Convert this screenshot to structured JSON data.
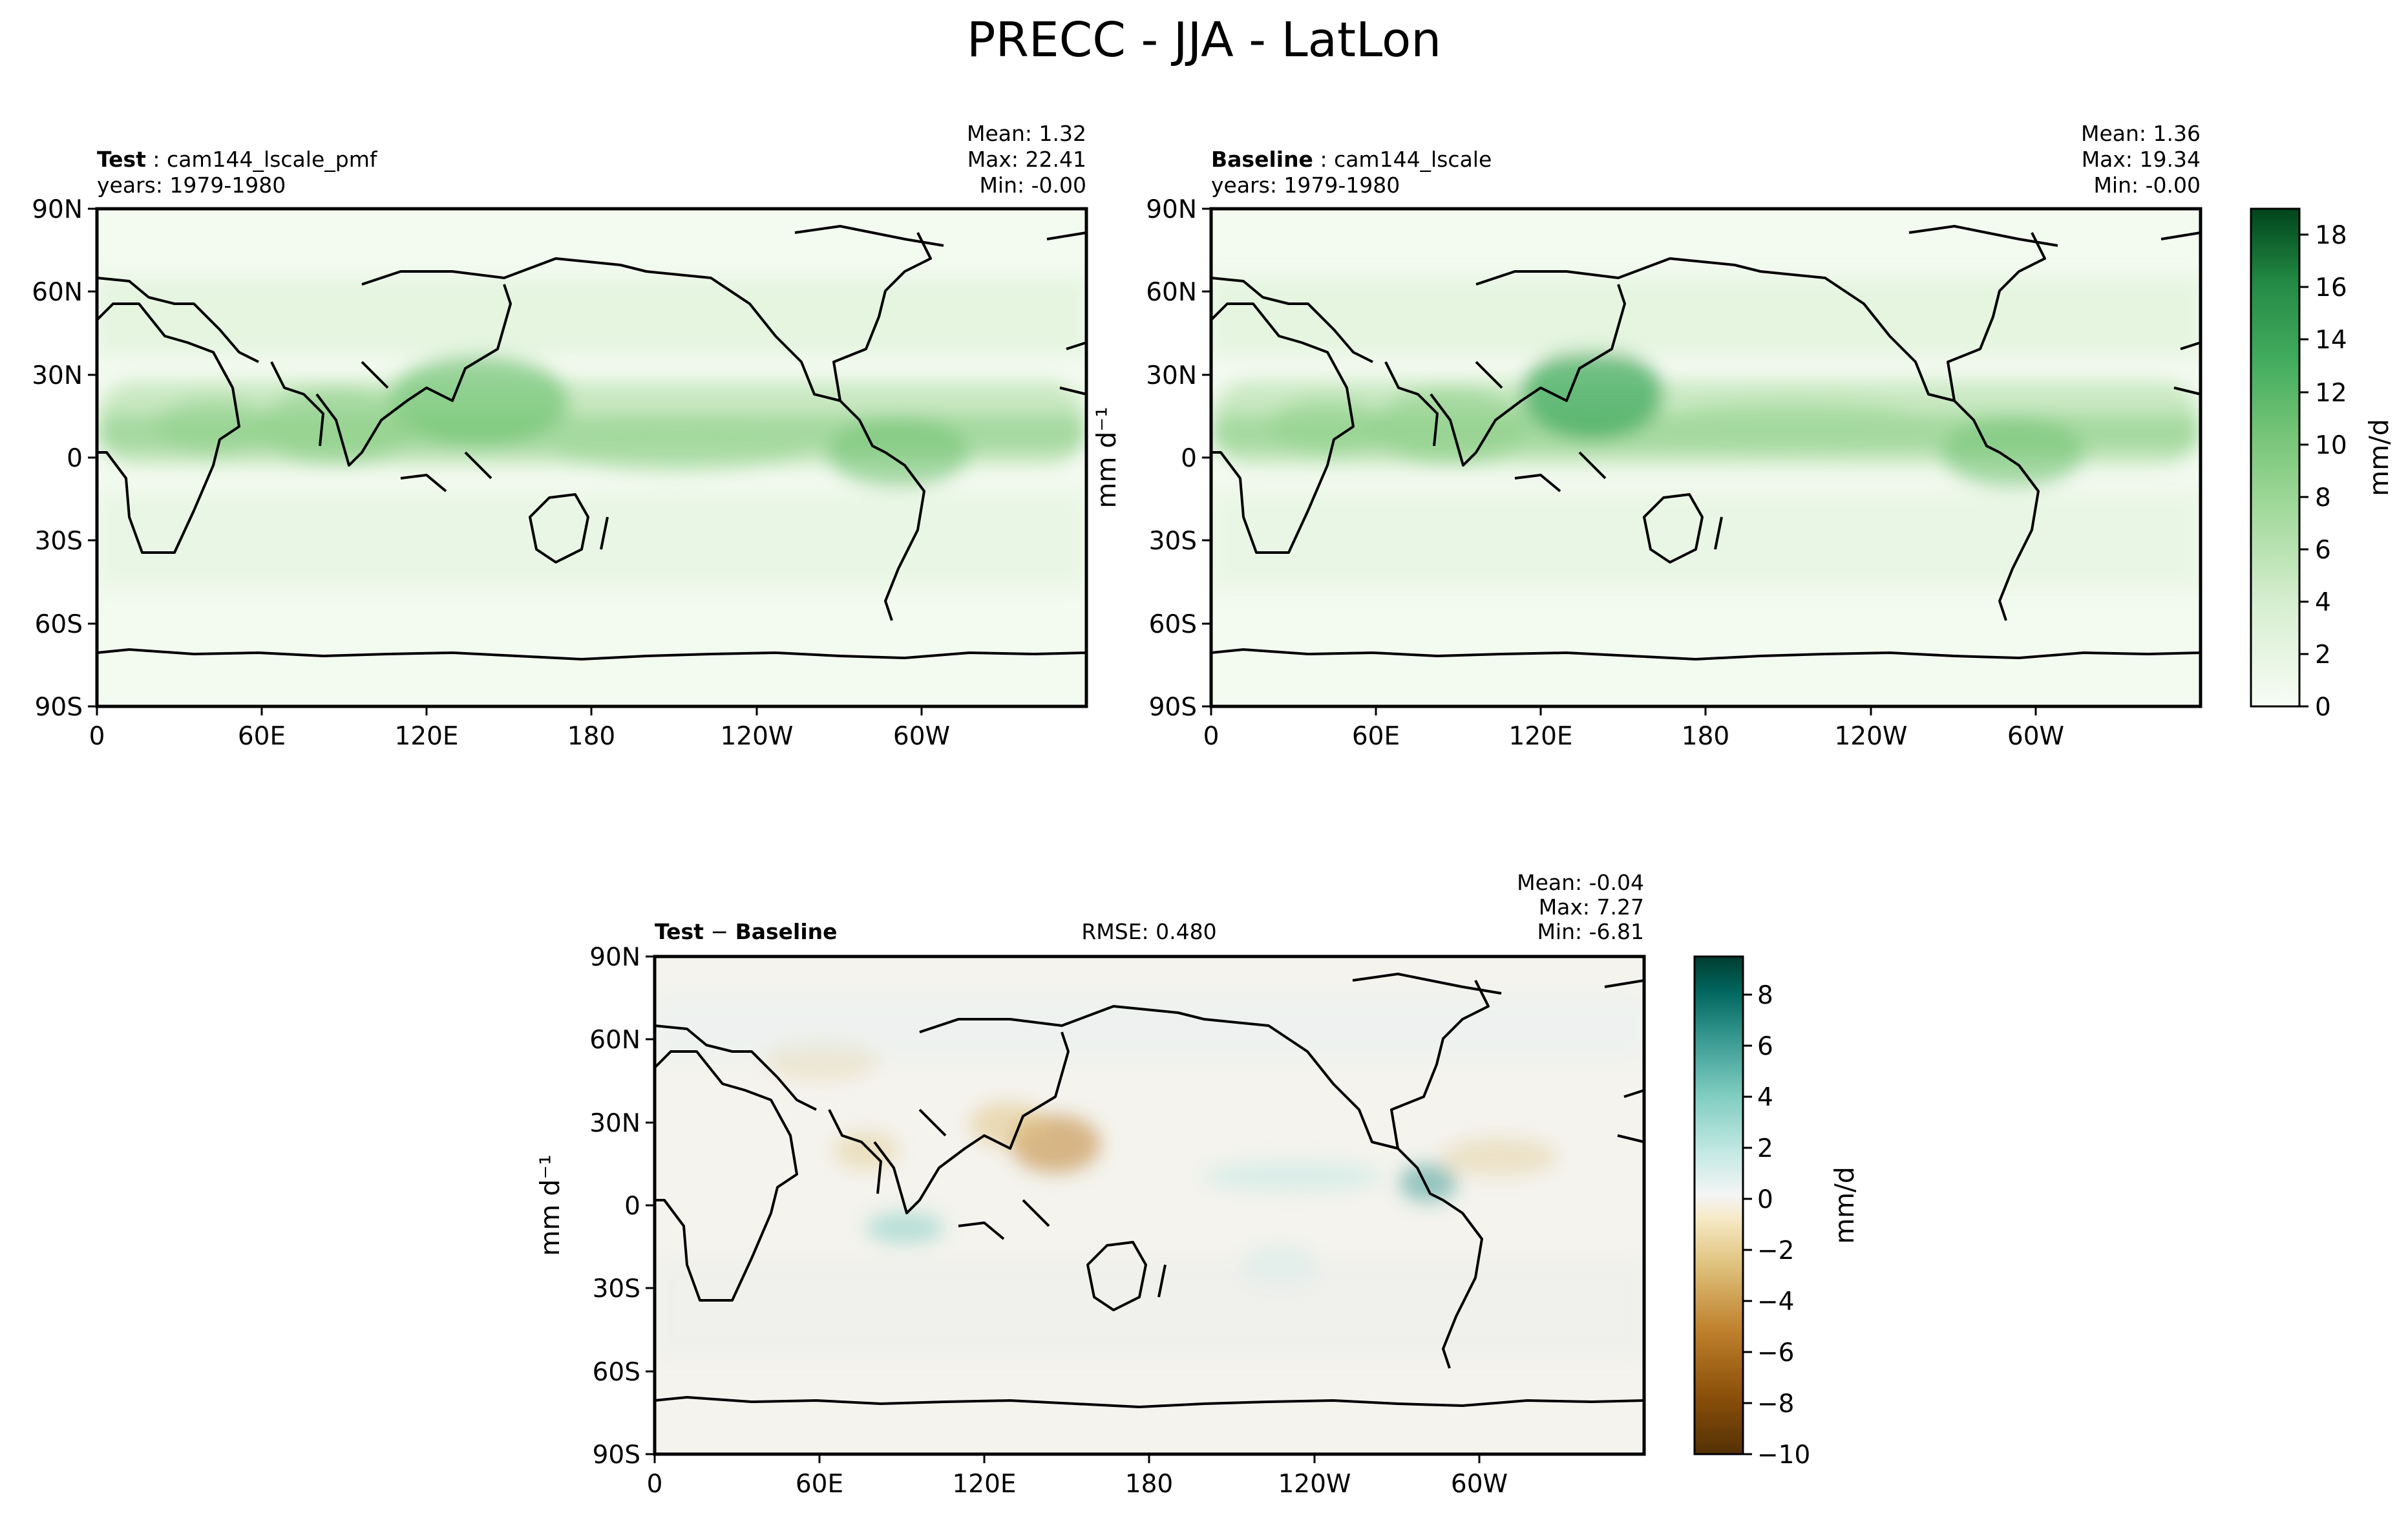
{
  "figure_title": "PRECC - JJA - LatLon",
  "chart_data": [
    {
      "type": "heatmap",
      "name": "test",
      "title_bold": "Test",
      "title_rest": "cam144_lscale_pmf",
      "years": "years: 1979-1980",
      "stats": {
        "mean": "Mean:  1.32",
        "max": "Max: 22.41",
        "min": "Min: -0.00"
      },
      "xticks": [
        "0",
        "60E",
        "120E",
        "180",
        "120W",
        "60W"
      ],
      "yticks": [
        "90N",
        "60N",
        "30N",
        "0",
        "30S",
        "60S",
        "90S"
      ],
      "xlim": [
        0,
        360
      ],
      "ylim": [
        -90,
        90
      ],
      "ylabel": "",
      "colormap": [
        "#f7fcf5",
        "#e5f5e0",
        "#c7e9c0",
        "#a1d99b",
        "#74c476",
        "#41ab5d",
        "#238b45",
        "#006d2c",
        "#00441b"
      ]
    },
    {
      "type": "heatmap",
      "name": "baseline",
      "title_bold": "Baseline",
      "title_rest": "cam144_lscale",
      "years": "years: 1979-1980",
      "stats": {
        "mean": "Mean:  1.36",
        "max": "Max: 19.34",
        "min": "Min: -0.00"
      },
      "xticks": [
        "0",
        "60E",
        "120E",
        "180",
        "120W",
        "60W"
      ],
      "yticks": [
        "90N",
        "60N",
        "30N",
        "0",
        "30S",
        "60S",
        "90S"
      ],
      "xlim": [
        0,
        360
      ],
      "ylim": [
        -90,
        90
      ],
      "ylabel": "mm d⁻¹",
      "colorbar": {
        "label": "mm/d",
        "ticks": [
          "0",
          "2",
          "4",
          "6",
          "8",
          "10",
          "12",
          "14",
          "16",
          "18"
        ],
        "range": [
          0,
          19
        ]
      }
    },
    {
      "type": "heatmap",
      "name": "difference",
      "title_bold_a": "Test",
      "title_sep": " − ",
      "title_bold_b": "Baseline",
      "rmse": "RMSE: 0.480",
      "stats": {
        "mean": "Mean: -0.04",
        "max": "Max:  7.27",
        "min": "Min: -6.81"
      },
      "xticks": [
        "0",
        "60E",
        "120E",
        "180",
        "120W",
        "60W"
      ],
      "yticks": [
        "90N",
        "60N",
        "30N",
        "0",
        "30S",
        "60S",
        "90S"
      ],
      "xlim": [
        0,
        360
      ],
      "ylim": [
        -90,
        90
      ],
      "ylabel": "mm d⁻¹",
      "colorbar": {
        "label": "mm/d",
        "ticks": [
          "−10",
          "−8",
          "−6",
          "−4",
          "−2",
          "0",
          "2",
          "4",
          "6",
          "8"
        ],
        "range": [
          -10,
          9.5
        ]
      },
      "colormap": [
        "#543005",
        "#8c510a",
        "#bf812d",
        "#dfc27d",
        "#f6e8c3",
        "#f5f5f5",
        "#c7eae5",
        "#80cdc1",
        "#35978f",
        "#01665e",
        "#003c30"
      ]
    }
  ]
}
